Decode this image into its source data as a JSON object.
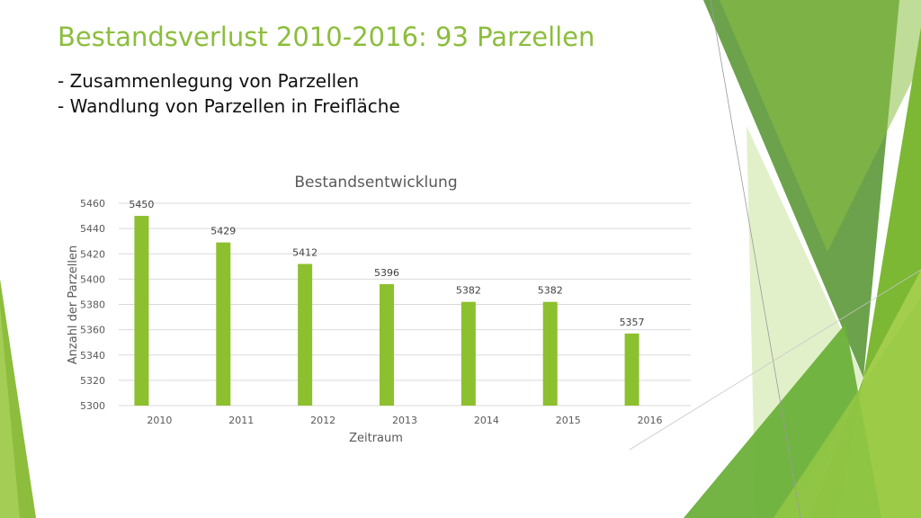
{
  "slide": {
    "title": "Bestandsverlust 2010-2016:  93 Parzellen",
    "bullets": [
      "- Zusammenlegung von Parzellen",
      "- Wandlung von Parzellen in Freifläche"
    ]
  },
  "colors": {
    "accent": "#8cbd3c",
    "bar": "#8dc02e",
    "text": "#111111",
    "axis_text": "#595959",
    "grid": "#d9d9d9"
  },
  "chart_data": {
    "type": "bar",
    "title": "Bestandsentwicklung",
    "xlabel": "Zeitraum",
    "ylabel": "Anzahl der Parzellen",
    "categories": [
      "2010",
      "2011",
      "2012",
      "2013",
      "2014",
      "2015",
      "2016"
    ],
    "values": [
      5450,
      5429,
      5412,
      5396,
      5382,
      5382,
      5357
    ],
    "ylim": [
      5300,
      5460
    ],
    "yticks": [
      5300,
      5320,
      5340,
      5360,
      5380,
      5400,
      5420,
      5440,
      5460
    ],
    "grid": true,
    "legend": "none",
    "data_labels": true
  }
}
